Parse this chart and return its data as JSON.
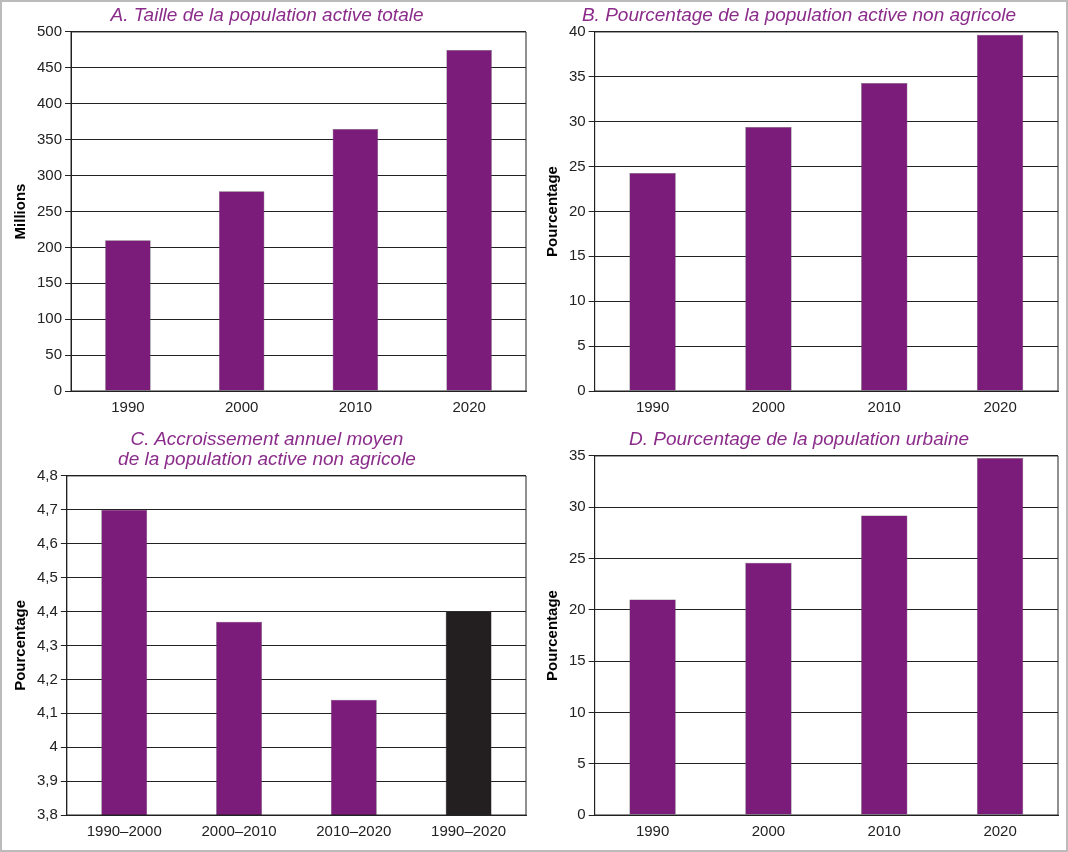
{
  "chart_data": [
    {
      "type": "bar",
      "title": "A. Taille de la population active totale",
      "ylabel": "Millions",
      "categories": [
        "1990",
        "2000",
        "2010",
        "2020"
      ],
      "values": [
        210,
        278,
        365,
        475
      ],
      "color": "#7b1c7b",
      "ylim": [
        0,
        500
      ],
      "yticks": [
        0,
        50,
        100,
        150,
        200,
        250,
        300,
        350,
        400,
        450,
        500
      ],
      "grid": "y"
    },
    {
      "type": "bar",
      "title": "B. Pourcentage de la population active non agricole",
      "ylabel": "Pourcentage",
      "categories": [
        "1990",
        "2000",
        "2010",
        "2020"
      ],
      "values": [
        24.3,
        29.4,
        34.3,
        39.7
      ],
      "color": "#7b1c7b",
      "ylim": [
        0,
        40
      ],
      "yticks": [
        0,
        5,
        10,
        15,
        20,
        25,
        30,
        35,
        40
      ],
      "grid": "y"
    },
    {
      "type": "bar",
      "title": "C. Accroissement annuel moyen\nde la population active non agricole",
      "ylabel": "Pourcentage",
      "categories": [
        "1990–2000",
        "2000–2010",
        "2010–2020",
        "1990–2020"
      ],
      "values": [
        4.7,
        4.37,
        4.14,
        4.4
      ],
      "colors": [
        "#7b1c7b",
        "#7b1c7b",
        "#7b1c7b",
        "#231f20"
      ],
      "ylim": [
        3.8,
        4.8
      ],
      "yticks": [
        {
          "value": 3.8,
          "label": "3,8"
        },
        {
          "value": 3.9,
          "label": "3,9"
        },
        4,
        {
          "value": 4.1,
          "label": "4,1"
        },
        {
          "value": 4.2,
          "label": "4,2"
        },
        {
          "value": 4.3,
          "label": "4,3"
        },
        {
          "value": 4.4,
          "label": "4,4"
        },
        {
          "value": 4.5,
          "label": "4,5"
        },
        {
          "value": 4.6,
          "label": "4,6"
        },
        {
          "value": 4.7,
          "label": "4,7"
        },
        {
          "value": 4.8,
          "label": "4,8"
        }
      ],
      "grid": "y"
    },
    {
      "type": "bar",
      "title": "D. Pourcentage de la population urbaine",
      "ylabel": "Pourcentage",
      "categories": [
        "1990",
        "2000",
        "2010",
        "2020"
      ],
      "values": [
        21,
        24.6,
        29.2,
        34.8
      ],
      "color": "#7b1c7b",
      "ylim": [
        0,
        35
      ],
      "yticks": [
        0,
        5,
        10,
        15,
        20,
        25,
        30,
        35
      ],
      "grid": "y"
    }
  ]
}
